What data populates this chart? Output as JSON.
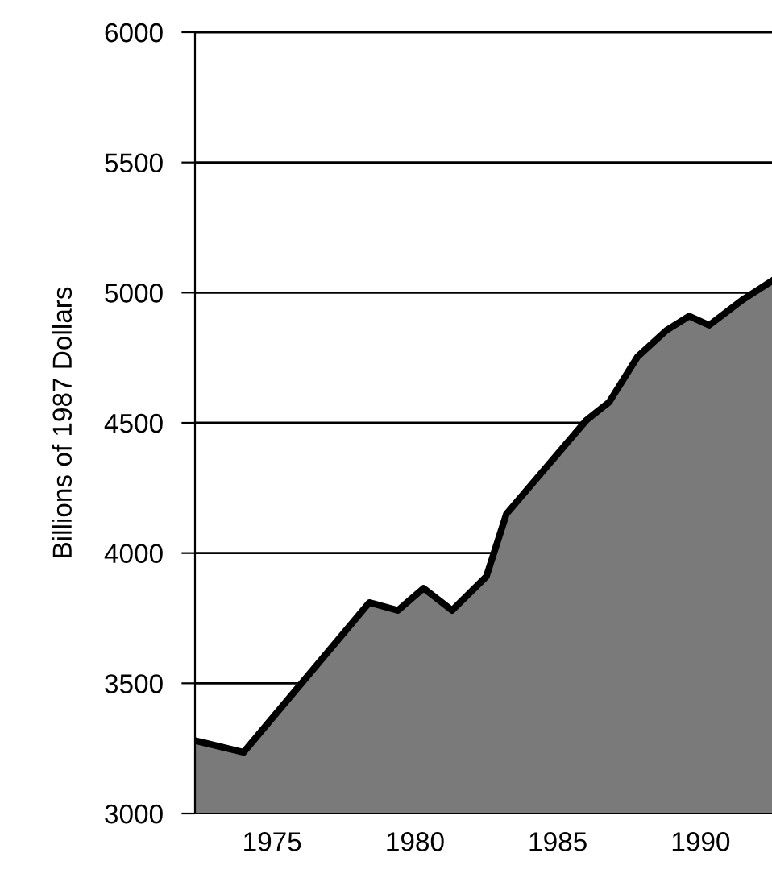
{
  "chart_data": {
    "type": "area",
    "ylabel": "Billions of 1987 Dollars",
    "x": [
      1972.3,
      1974.0,
      1978.4,
      1979.4,
      1980.3,
      1981.3,
      1982.5,
      1983.2,
      1986.0,
      1986.8,
      1987.8,
      1988.8,
      1989.6,
      1990.3,
      1991.5,
      1992.5
    ],
    "series": [
      {
        "color": "#7a7a7a",
        "values": [
          3280,
          3235,
          3810,
          3780,
          3865,
          3780,
          3910,
          4150,
          4510,
          4580,
          4755,
          4855,
          4910,
          4875,
          4975,
          5045
        ]
      }
    ],
    "xlim": [
      1972.3,
      1992.5
    ],
    "ylim": [
      3000,
      6000
    ],
    "xticks": [
      1975,
      1980,
      1985,
      1990
    ],
    "yticks": [
      3000,
      3500,
      4000,
      4500,
      5000,
      5500,
      6000
    ],
    "grid": "y",
    "legend": false
  }
}
